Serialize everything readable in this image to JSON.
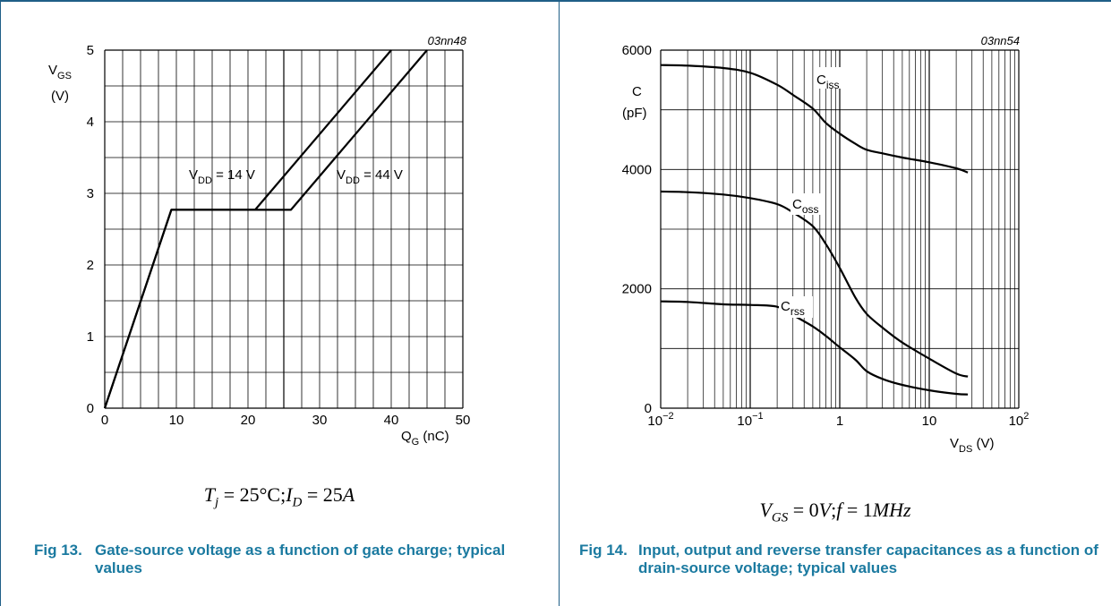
{
  "charts": [
    {
      "code": "03nn48",
      "condition": {
        "parts": [
          {
            "t": "T",
            "i": true
          },
          {
            "t": "j",
            "sub": true,
            "i": true
          },
          {
            "t": " = 25°C;",
            "i": false
          },
          {
            "t": "I",
            "i": true
          },
          {
            "t": "D",
            "sub": true,
            "i": true
          },
          {
            "t": " = 25",
            "i": false
          },
          {
            "t": "A",
            "i": true
          }
        ]
      },
      "caption": {
        "number": "Fig 13.",
        "text": "Gate-source voltage as a function of gate charge; typical values"
      }
    },
    {
      "code": "03nn54",
      "condition": {
        "parts": [
          {
            "t": "V",
            "i": true
          },
          {
            "t": "GS",
            "sub": true,
            "i": true
          },
          {
            "t": " = 0",
            "i": false
          },
          {
            "t": "V",
            "i": true
          },
          {
            "t": ";",
            "i": false
          },
          {
            "t": "f",
            "i": true
          },
          {
            "t": " = 1",
            "i": false
          },
          {
            "t": "MHz",
            "i": true
          }
        ]
      },
      "caption": {
        "number": "Fig 14.",
        "text": "Input, output and reverse transfer capacitances as a function of drain-source voltage; typical values"
      }
    }
  ],
  "chart_data": [
    {
      "type": "line",
      "xlabel": {
        "main": "Q",
        "sub": "G",
        "unit": " (nC)"
      },
      "ylabel": {
        "main": "V",
        "sub": "GS",
        "unit": "(V)"
      },
      "xlim": [
        0,
        50
      ],
      "ylim": [
        0,
        5
      ],
      "xticks": [
        0,
        10,
        20,
        30,
        40,
        50
      ],
      "yticks": [
        0,
        1,
        2,
        3,
        4,
        5
      ],
      "grid": true,
      "series": [
        {
          "label": {
            "pre": "V",
            "sub": "DD",
            "post": " = 14 V"
          },
          "points": [
            [
              0,
              0
            ],
            [
              9.3,
              2.77
            ],
            [
              21,
              2.77
            ],
            [
              40,
              5
            ]
          ]
        },
        {
          "label": {
            "pre": "V",
            "sub": "DD",
            "post": " = 44 V"
          },
          "points": [
            [
              0,
              0
            ],
            [
              9.3,
              2.77
            ],
            [
              26,
              2.77
            ],
            [
              45,
              5
            ]
          ]
        }
      ]
    },
    {
      "type": "line",
      "xscale": "log",
      "xlabel": {
        "main": "V",
        "sub": "DS",
        "unit": " (V)"
      },
      "ylabel": {
        "main": "C",
        "unit": "(pF)"
      },
      "xlim": [
        0.01,
        100
      ],
      "ylim": [
        0,
        6000
      ],
      "xticks": [
        {
          "v": 0.01,
          "base": "10",
          "exp": "−2"
        },
        {
          "v": 0.1,
          "base": "10",
          "exp": "−1"
        },
        {
          "v": 1,
          "base": "1",
          "exp": ""
        },
        {
          "v": 10,
          "base": "10",
          "exp": ""
        },
        {
          "v": 100,
          "base": "10",
          "exp": "2"
        }
      ],
      "yticks": [
        0,
        2000,
        4000,
        6000
      ],
      "ygrid_step": 1000,
      "grid": true,
      "series": [
        {
          "label": {
            "pre": "C",
            "sub": "iss"
          },
          "points": [
            [
              0.01,
              5750
            ],
            [
              0.02,
              5740
            ],
            [
              0.05,
              5700
            ],
            [
              0.1,
              5620
            ],
            [
              0.2,
              5420
            ],
            [
              0.3,
              5250
            ],
            [
              0.5,
              5020
            ],
            [
              0.7,
              4780
            ],
            [
              1,
              4600
            ],
            [
              1.5,
              4430
            ],
            [
              2,
              4330
            ],
            [
              3,
              4270
            ],
            [
              5,
              4200
            ],
            [
              10,
              4120
            ],
            [
              20,
              4020
            ],
            [
              27,
              3950
            ]
          ]
        },
        {
          "label": {
            "pre": "C",
            "sub": "oss"
          },
          "points": [
            [
              0.01,
              3630
            ],
            [
              0.02,
              3620
            ],
            [
              0.05,
              3580
            ],
            [
              0.1,
              3520
            ],
            [
              0.2,
              3420
            ],
            [
              0.3,
              3280
            ],
            [
              0.5,
              3050
            ],
            [
              0.7,
              2750
            ],
            [
              1,
              2350
            ],
            [
              1.5,
              1850
            ],
            [
              2,
              1580
            ],
            [
              3,
              1350
            ],
            [
              5,
              1100
            ],
            [
              10,
              830
            ],
            [
              20,
              580
            ],
            [
              27,
              530
            ]
          ]
        },
        {
          "label": {
            "pre": "C",
            "sub": "rss"
          },
          "points": [
            [
              0.01,
              1790
            ],
            [
              0.02,
              1780
            ],
            [
              0.05,
              1740
            ],
            [
              0.1,
              1730
            ],
            [
              0.2,
              1700
            ],
            [
              0.3,
              1560
            ],
            [
              0.5,
              1370
            ],
            [
              0.7,
              1210
            ],
            [
              1,
              1020
            ],
            [
              1.5,
              810
            ],
            [
              2,
              620
            ],
            [
              3,
              490
            ],
            [
              5,
              390
            ],
            [
              10,
              300
            ],
            [
              20,
              240
            ],
            [
              27,
              230
            ]
          ]
        }
      ]
    }
  ]
}
